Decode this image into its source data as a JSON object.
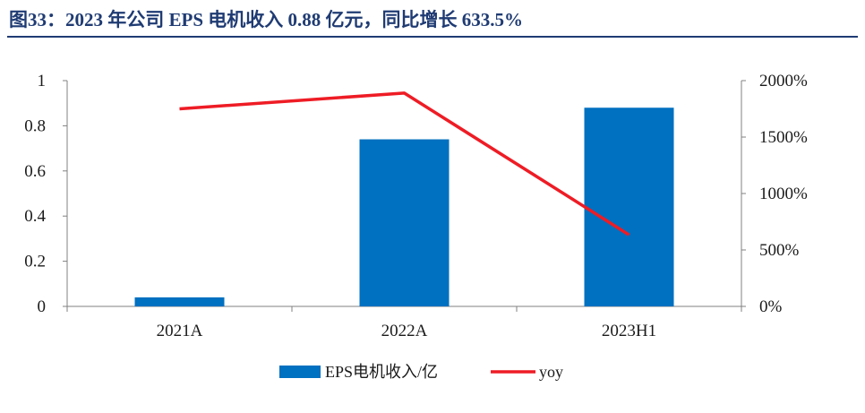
{
  "header": {
    "title": "图33：2023 年公司 EPS 电机收入 0.88 亿元，同比增长 633.5%"
  },
  "chart_data": {
    "type": "bar",
    "categories": [
      "2021A",
      "2022A",
      "2023H1"
    ],
    "series": [
      {
        "name": "EPS电机收入/亿",
        "kind": "bar",
        "axis": "left",
        "values": [
          0.04,
          0.74,
          0.88
        ],
        "color": "#0070c0"
      },
      {
        "name": "yoy",
        "kind": "line",
        "axis": "right",
        "values": [
          1750,
          1890,
          633.5
        ],
        "color": "#ee1c25"
      }
    ],
    "y_left": {
      "ylim": [
        0,
        1
      ],
      "ticks": [
        0,
        0.2,
        0.4,
        0.6,
        0.8,
        1
      ],
      "tick_labels": [
        "0",
        "0.2",
        "0.4",
        "0.6",
        "0.8",
        "1"
      ]
    },
    "y_right": {
      "ylim": [
        0,
        2000
      ],
      "ticks": [
        0,
        500,
        1000,
        1500,
        2000
      ],
      "tick_labels": [
        "0%",
        "500%",
        "1000%",
        "1500%",
        "2000%"
      ]
    },
    "legend": {
      "position": "bottom"
    },
    "title": "图33：2023 年公司 EPS 电机收入 0.88 亿元，同比增长 633.5%"
  }
}
